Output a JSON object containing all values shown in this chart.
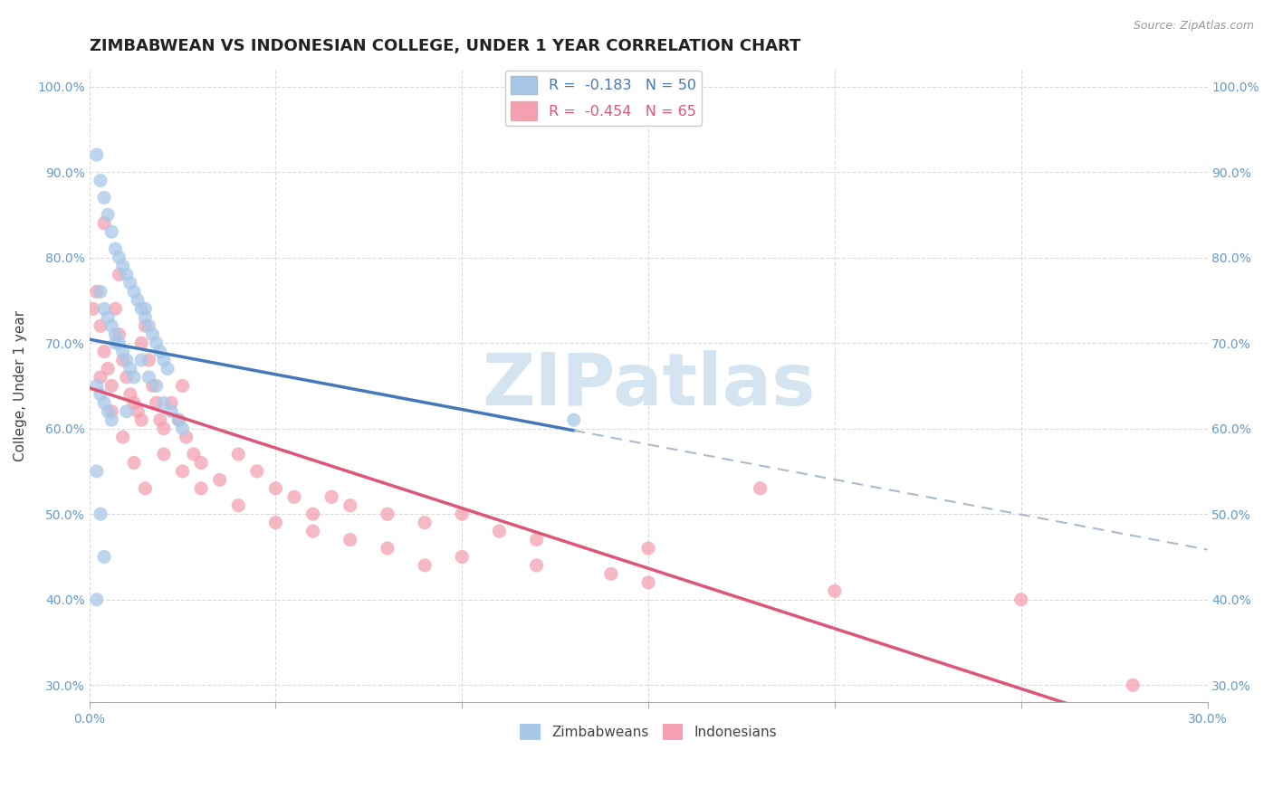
{
  "title": "ZIMBABWEAN VS INDONESIAN COLLEGE, UNDER 1 YEAR CORRELATION CHART",
  "source_text": "Source: ZipAtlas.com",
  "xlabel": "",
  "ylabel": "College, Under 1 year",
  "xlim": [
    0.0,
    0.3
  ],
  "ylim": [
    0.28,
    1.02
  ],
  "xticks": [
    0.0,
    0.05,
    0.1,
    0.15,
    0.2,
    0.25,
    0.3
  ],
  "yticks": [
    0.3,
    0.4,
    0.5,
    0.6,
    0.7,
    0.8,
    0.9,
    1.0
  ],
  "xticklabels": [
    "0.0%",
    "",
    "",
    "",
    "",
    "",
    "30.0%"
  ],
  "yticklabels": [
    "30.0%",
    "40.0%",
    "50.0%",
    "60.0%",
    "70.0%",
    "80.0%",
    "90.0%",
    "100.0%"
  ],
  "zim_color": "#a8c8e8",
  "ind_color": "#f4a0b0",
  "zim_line_color": "#4477bb",
  "ind_line_color": "#dd5577",
  "dashed_line_color": "#aabbcc",
  "legend_r_zim": "-0.183",
  "legend_n_zim": "50",
  "legend_r_ind": "-0.454",
  "legend_n_ind": "65",
  "watermark": "ZIPatlas",
  "background_color": "#ffffff",
  "zim_scatter_x": [
    0.002,
    0.003,
    0.004,
    0.005,
    0.006,
    0.007,
    0.008,
    0.009,
    0.01,
    0.011,
    0.012,
    0.013,
    0.014,
    0.015,
    0.016,
    0.017,
    0.018,
    0.019,
    0.02,
    0.021,
    0.003,
    0.004,
    0.005,
    0.006,
    0.007,
    0.008,
    0.009,
    0.01,
    0.011,
    0.012,
    0.002,
    0.003,
    0.004,
    0.005,
    0.006,
    0.007,
    0.014,
    0.016,
    0.018,
    0.02,
    0.022,
    0.024,
    0.01,
    0.025,
    0.002,
    0.003,
    0.004,
    0.13,
    0.002,
    0.015
  ],
  "zim_scatter_y": [
    0.92,
    0.89,
    0.87,
    0.85,
    0.83,
    0.81,
    0.8,
    0.79,
    0.78,
    0.77,
    0.76,
    0.75,
    0.74,
    0.73,
    0.72,
    0.71,
    0.7,
    0.69,
    0.68,
    0.67,
    0.76,
    0.74,
    0.73,
    0.72,
    0.71,
    0.7,
    0.69,
    0.68,
    0.67,
    0.66,
    0.65,
    0.64,
    0.63,
    0.62,
    0.61,
    0.7,
    0.68,
    0.66,
    0.65,
    0.63,
    0.62,
    0.61,
    0.62,
    0.6,
    0.55,
    0.5,
    0.45,
    0.61,
    0.4,
    0.74
  ],
  "ind_scatter_x": [
    0.001,
    0.002,
    0.003,
    0.004,
    0.005,
    0.006,
    0.007,
    0.008,
    0.009,
    0.01,
    0.011,
    0.012,
    0.013,
    0.014,
    0.015,
    0.016,
    0.017,
    0.018,
    0.019,
    0.02,
    0.022,
    0.024,
    0.026,
    0.028,
    0.03,
    0.035,
    0.04,
    0.045,
    0.05,
    0.055,
    0.06,
    0.065,
    0.07,
    0.08,
    0.09,
    0.1,
    0.11,
    0.12,
    0.15,
    0.18,
    0.003,
    0.006,
    0.009,
    0.012,
    0.015,
    0.02,
    0.025,
    0.03,
    0.04,
    0.05,
    0.06,
    0.07,
    0.08,
    0.1,
    0.12,
    0.14,
    0.15,
    0.2,
    0.25,
    0.28,
    0.004,
    0.008,
    0.014,
    0.025,
    0.09
  ],
  "ind_scatter_y": [
    0.74,
    0.76,
    0.72,
    0.69,
    0.67,
    0.65,
    0.74,
    0.71,
    0.68,
    0.66,
    0.64,
    0.63,
    0.62,
    0.61,
    0.72,
    0.68,
    0.65,
    0.63,
    0.61,
    0.6,
    0.63,
    0.61,
    0.59,
    0.57,
    0.56,
    0.54,
    0.57,
    0.55,
    0.53,
    0.52,
    0.5,
    0.52,
    0.51,
    0.5,
    0.49,
    0.5,
    0.48,
    0.47,
    0.46,
    0.53,
    0.66,
    0.62,
    0.59,
    0.56,
    0.53,
    0.57,
    0.55,
    0.53,
    0.51,
    0.49,
    0.48,
    0.47,
    0.46,
    0.45,
    0.44,
    0.43,
    0.42,
    0.41,
    0.4,
    0.3,
    0.84,
    0.78,
    0.7,
    0.65,
    0.44
  ],
  "zim_line_x_end": 0.13,
  "grid_color": "#cccccc",
  "tick_color": "#6699cc",
  "title_fontsize": 13,
  "axis_label_fontsize": 11,
  "tick_fontsize": 10,
  "watermark_color": "#d4e4f0",
  "watermark_fontsize": 58
}
